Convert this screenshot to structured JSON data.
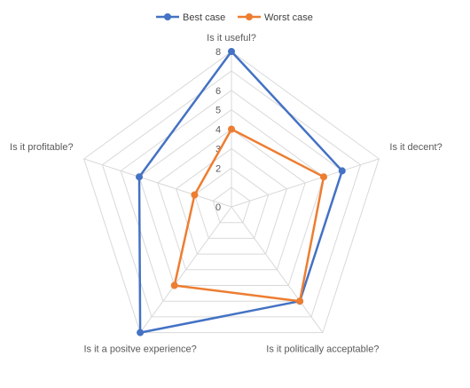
{
  "chart_data": {
    "type": "radar",
    "categories": [
      "Is it useful?",
      "Is it decent?",
      "Is it politically acceptable?",
      "Is it a positve experience?",
      "Is it profitable?"
    ],
    "series": [
      {
        "name": "Best case",
        "color": "#4472C4",
        "values": [
          8,
          6,
          6,
          8,
          5
        ]
      },
      {
        "name": "Worst case",
        "color": "#ED7D31",
        "values": [
          4,
          5,
          6,
          5,
          2
        ]
      }
    ],
    "rlim": [
      0,
      8
    ],
    "ticks": [
      0,
      1,
      2,
      3,
      4,
      5,
      6,
      7,
      8
    ],
    "tick_labels": [
      "0",
      "",
      "2",
      "3",
      "4",
      "5",
      "6",
      "",
      "8"
    ],
    "grid": true,
    "legend": "top"
  }
}
